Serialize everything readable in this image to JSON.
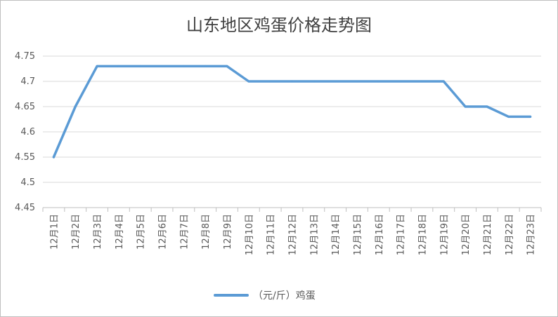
{
  "chart_data": {
    "type": "line",
    "title": "山东地区鸡蛋价格走势图",
    "xlabel": "",
    "ylabel": "",
    "ylim": [
      4.45,
      4.75
    ],
    "yticks": [
      "4.45",
      "4.5",
      "4.55",
      "4.6",
      "4.65",
      "4.7",
      "4.75"
    ],
    "grid": true,
    "legend_position": "bottom",
    "categories": [
      "12月1日",
      "12月2日",
      "12月3日",
      "12月4日",
      "12月5日",
      "12月6日",
      "12月7日",
      "12月8日",
      "12月9日",
      "12月10日",
      "12月11日",
      "12月12日",
      "12月13日",
      "12月14日",
      "12月15日",
      "12月16日",
      "12月17日",
      "12月18日",
      "12月19日",
      "12月20日",
      "12月21日",
      "12月22日",
      "12月23日"
    ],
    "series": [
      {
        "name": "（元/斤）鸡蛋",
        "color": "#5b9bd5",
        "values": [
          4.55,
          4.65,
          4.73,
          4.73,
          4.73,
          4.73,
          4.73,
          4.73,
          4.73,
          4.7,
          4.7,
          4.7,
          4.7,
          4.7,
          4.7,
          4.7,
          4.7,
          4.7,
          4.7,
          4.65,
          4.65,
          4.63,
          4.63
        ]
      }
    ]
  }
}
